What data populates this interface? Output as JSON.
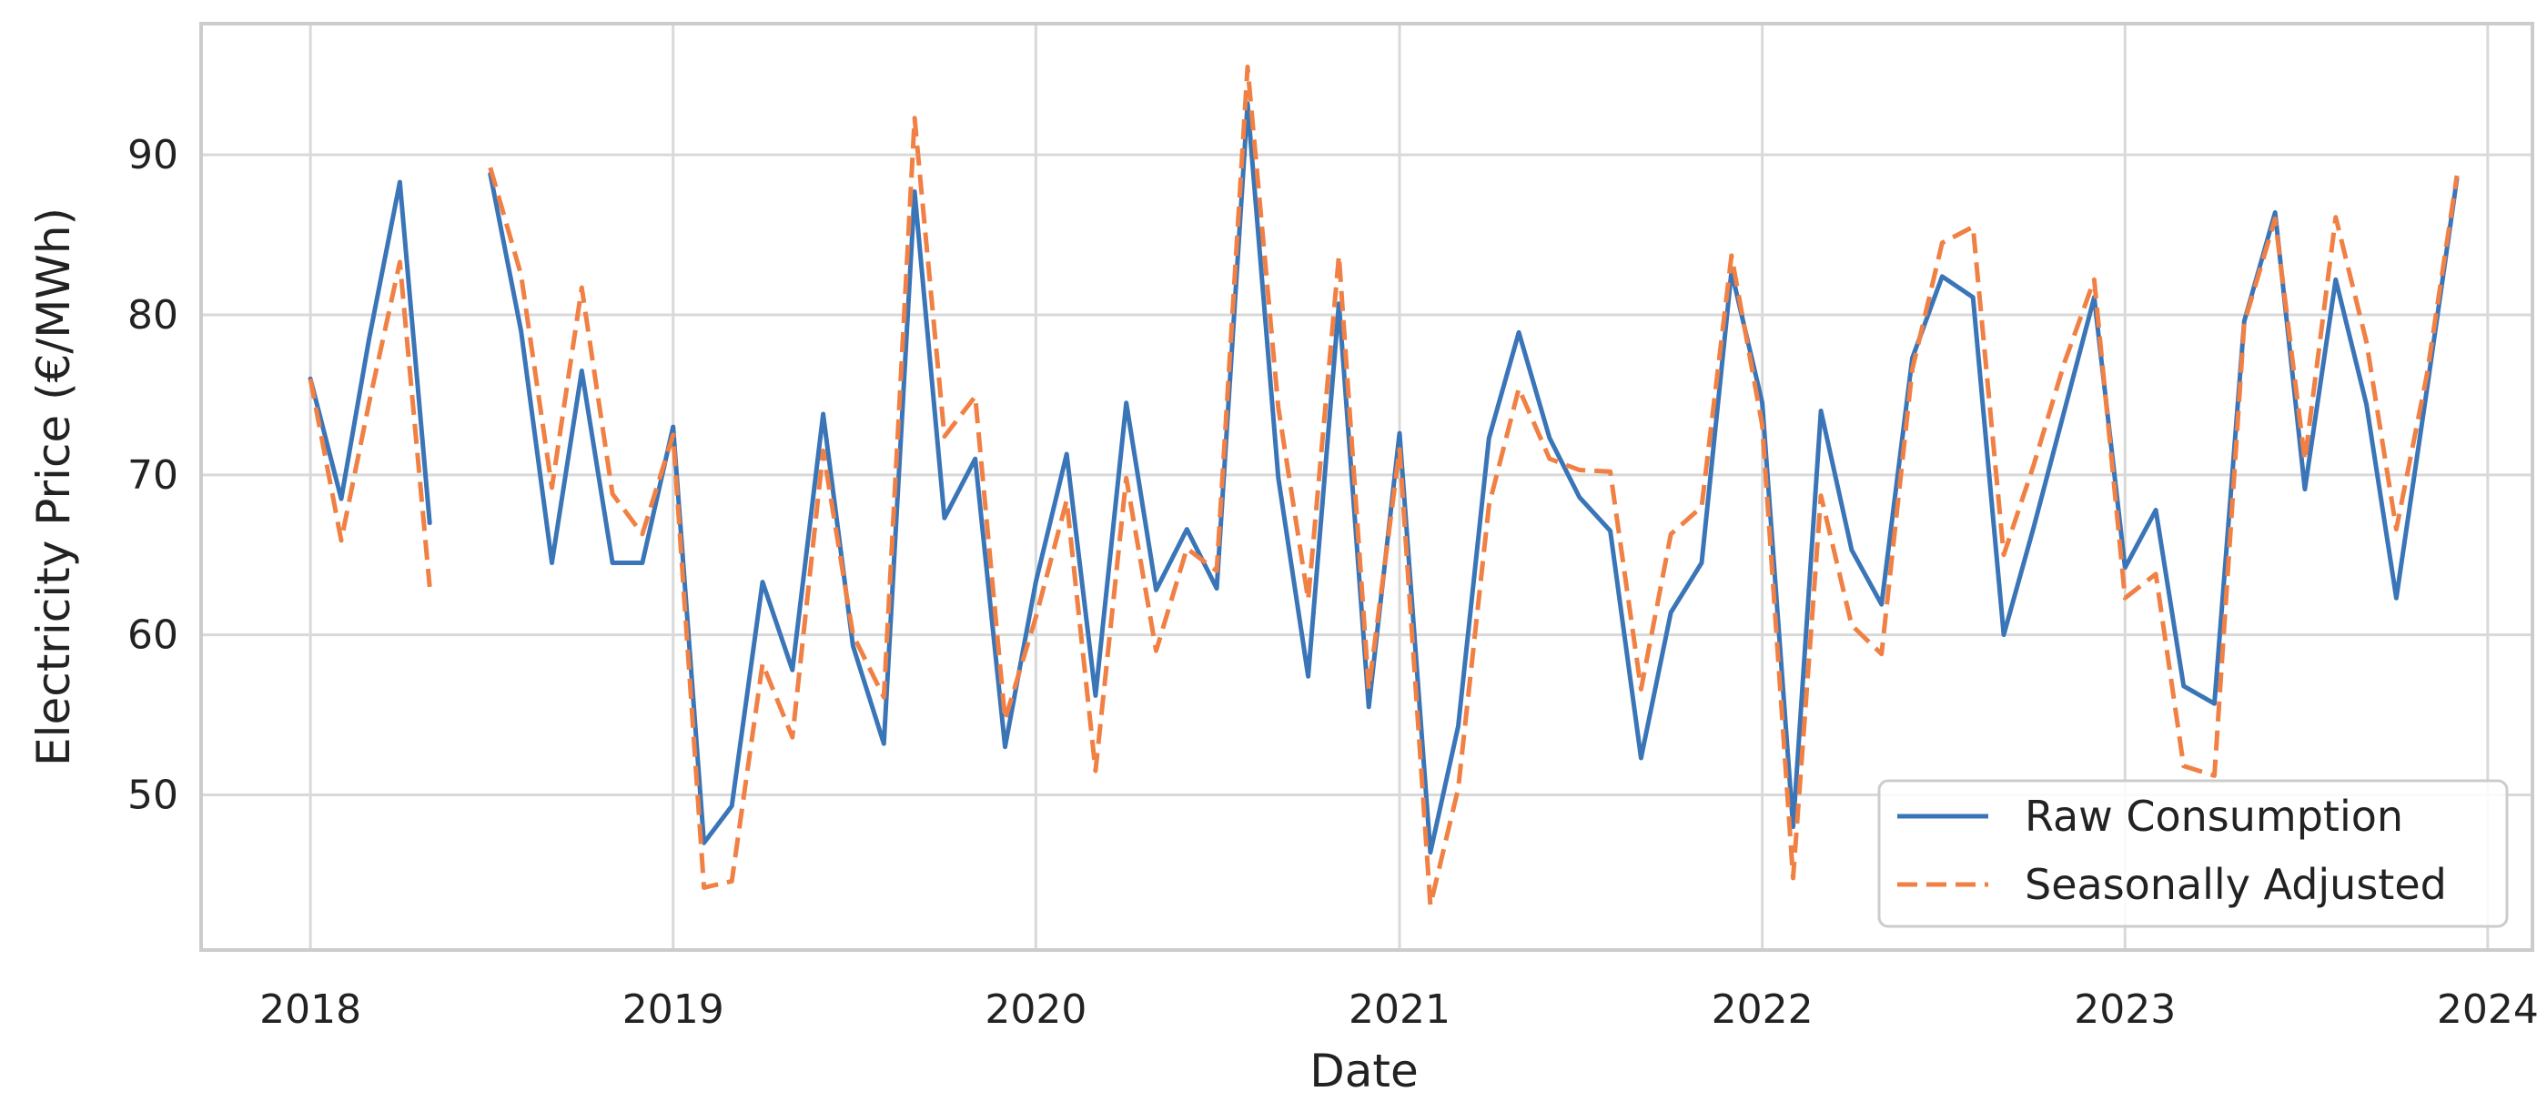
{
  "chart_data": {
    "type": "line",
    "title": "",
    "xlabel": "Date",
    "ylabel": "Electricity Price (€/MWh)",
    "x_ticks": [
      "2018",
      "2019",
      "2020",
      "2021",
      "2022",
      "2023",
      "2024"
    ],
    "y_ticks": [
      "50",
      "60",
      "70",
      "80",
      "90"
    ],
    "xlim": [
      "2017-09-13",
      "2024-02-15"
    ],
    "ylim": [
      40.3,
      98.2
    ],
    "grid": true,
    "legend_position": "lower-right",
    "x": [
      "2018-01",
      "2018-02",
      "2018-03",
      "2018-04",
      "2018-05",
      "2018-06",
      "2018-07",
      "2018-08",
      "2018-09",
      "2018-10",
      "2018-11",
      "2018-12",
      "2019-01",
      "2019-02",
      "2019-03",
      "2019-04",
      "2019-05",
      "2019-06",
      "2019-07",
      "2019-08",
      "2019-09",
      "2019-10",
      "2019-11",
      "2019-12",
      "2020-01",
      "2020-02",
      "2020-03",
      "2020-04",
      "2020-05",
      "2020-06",
      "2020-07",
      "2020-08",
      "2020-09",
      "2020-10",
      "2020-11",
      "2020-12",
      "2021-01",
      "2021-02",
      "2021-03",
      "2021-04",
      "2021-05",
      "2021-06",
      "2021-07",
      "2021-08",
      "2021-09",
      "2021-10",
      "2021-11",
      "2021-12",
      "2022-01",
      "2022-02",
      "2022-03",
      "2022-04",
      "2022-05",
      "2022-06",
      "2022-07",
      "2022-08",
      "2022-09",
      "2022-10",
      "2022-11",
      "2022-12",
      "2023-01",
      "2023-02",
      "2023-03",
      "2023-04",
      "2023-05",
      "2023-06",
      "2023-07",
      "2023-08",
      "2023-09",
      "2023-10",
      "2023-11",
      "2023-12"
    ],
    "series": [
      {
        "name": "Raw Consumption",
        "color": "#3a75b8",
        "dash": "solid",
        "values": [
          76.0,
          68.5,
          78.5,
          88.3,
          67.0,
          null,
          88.8,
          79.0,
          64.5,
          76.5,
          64.5,
          64.5,
          73.0,
          47.0,
          49.3,
          63.3,
          57.8,
          73.8,
          59.3,
          53.2,
          87.7,
          67.3,
          71.0,
          53.0,
          63.3,
          71.3,
          56.2,
          74.5,
          62.8,
          66.6,
          62.9,
          93.2,
          69.8,
          57.4,
          80.7,
          55.5,
          72.6,
          46.4,
          54.3,
          72.3,
          78.9,
          72.3,
          68.6,
          66.5,
          52.3,
          61.4,
          64.5,
          82.7,
          74.5,
          48.0,
          74.0,
          65.3,
          61.9,
          77.3,
          82.4,
          81.1,
          60.0,
          66.7,
          74.0,
          81.1,
          64.2,
          67.8,
          56.8,
          55.7,
          79.6,
          86.4,
          69.1,
          82.2,
          74.4,
          62.3,
          75.4,
          88.5
        ]
      },
      {
        "name": "Seasonally Adjusted",
        "color": "#f08044",
        "dash": "dashed",
        "values": [
          76.0,
          65.9,
          74.5,
          83.3,
          63.0,
          null,
          89.2,
          82.5,
          69.2,
          81.7,
          68.8,
          66.3,
          72.5,
          44.2,
          44.6,
          58.2,
          53.6,
          71.5,
          60.0,
          56.1,
          92.3,
          72.4,
          74.9,
          54.7,
          61.1,
          68.4,
          51.5,
          69.8,
          59.0,
          65.4,
          64.0,
          95.5,
          74.2,
          62.2,
          83.7,
          56.6,
          71.6,
          43.1,
          50.4,
          68.1,
          75.4,
          71.0,
          70.3,
          70.2,
          56.6,
          66.3,
          68.0,
          83.7,
          73.1,
          44.8,
          68.7,
          60.6,
          58.8,
          76.6,
          84.5,
          85.5,
          65.0,
          70.6,
          77.0,
          82.2,
          62.3,
          63.8,
          51.8,
          51.2,
          79.5,
          86.0,
          70.9,
          86.1,
          78.3,
          66.6,
          76.3,
          88.7
        ]
      }
    ]
  }
}
